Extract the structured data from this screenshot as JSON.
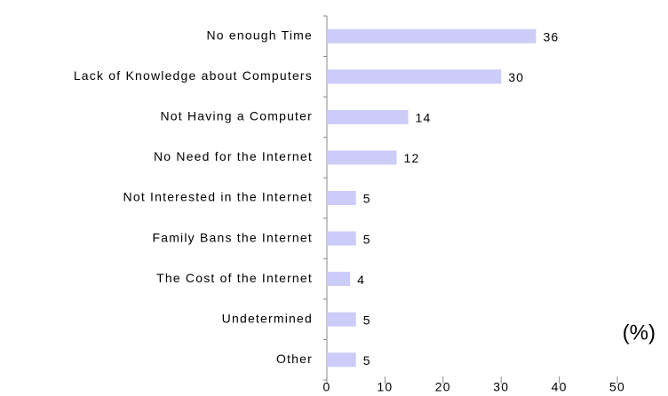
{
  "chart_data": {
    "type": "hbar",
    "categories": [
      "No enough Time",
      "Lack of Knowledge about Computers",
      "Not Having a Computer",
      "No Need for the Internet",
      "Not Interested in the Internet",
      "Family Bans the Internet",
      "The Cost of the Internet",
      "Undetermined",
      "Other"
    ],
    "values": [
      36,
      30,
      14,
      12,
      5,
      5,
      4,
      5,
      5
    ],
    "color": "#ccccf8",
    "xlim": [
      0,
      50
    ],
    "xticks": [
      0,
      10,
      20,
      30,
      40,
      50
    ],
    "annotation": "(%)"
  }
}
